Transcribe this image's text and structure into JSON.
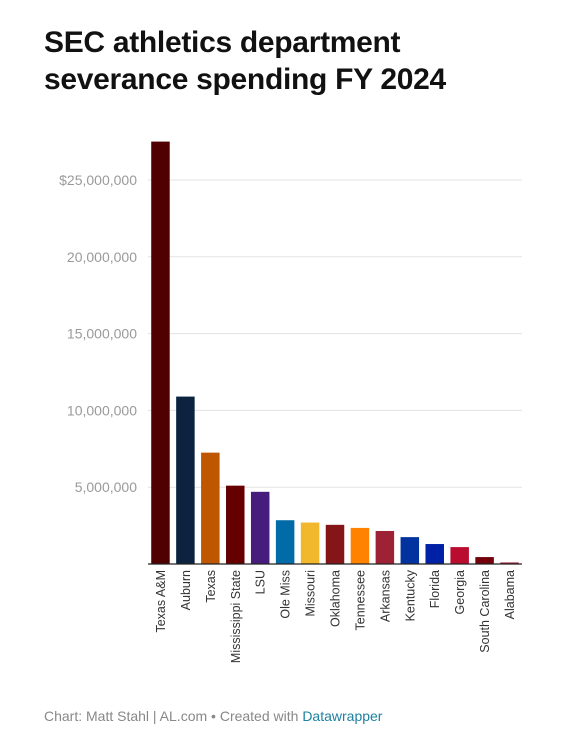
{
  "title": "SEC athletics department severance spending FY 2024",
  "footer": {
    "credit": "Chart: Matt Stahl | AL.com • Created with ",
    "tool": "Datawrapper"
  },
  "chart_data": {
    "type": "bar",
    "title": "SEC athletics department severance spending FY 2024",
    "xlabel": "",
    "ylabel": "",
    "ylim": [
      0,
      28000000
    ],
    "yticks": [
      5000000,
      10000000,
      15000000,
      20000000,
      25000000
    ],
    "ytick_labels": [
      "5,000,000",
      "10,000,000",
      "15,000,000",
      "20,000,000",
      "$25,000,000"
    ],
    "grid": true,
    "categories": [
      "Texas A&M",
      "Auburn",
      "Texas",
      "Mississippi State",
      "LSU",
      "Ole Miss",
      "Missouri",
      "Oklahoma",
      "Tennessee",
      "Arkansas",
      "Kentucky",
      "Florida",
      "Georgia",
      "South Carolina",
      "Alabama"
    ],
    "values": [
      27500000,
      10900000,
      7250000,
      5100000,
      4700000,
      2850000,
      2700000,
      2550000,
      2350000,
      2150000,
      1750000,
      1300000,
      1100000,
      450000,
      100000
    ],
    "colors": [
      "#500000",
      "#0c2340",
      "#bf5700",
      "#660000",
      "#461d7c",
      "#006ba6",
      "#f1b82d",
      "#841617",
      "#ff8200",
      "#9d2235",
      "#0033a0",
      "#0021a5",
      "#ba0c2f",
      "#73000a",
      "#9e1b32"
    ]
  }
}
